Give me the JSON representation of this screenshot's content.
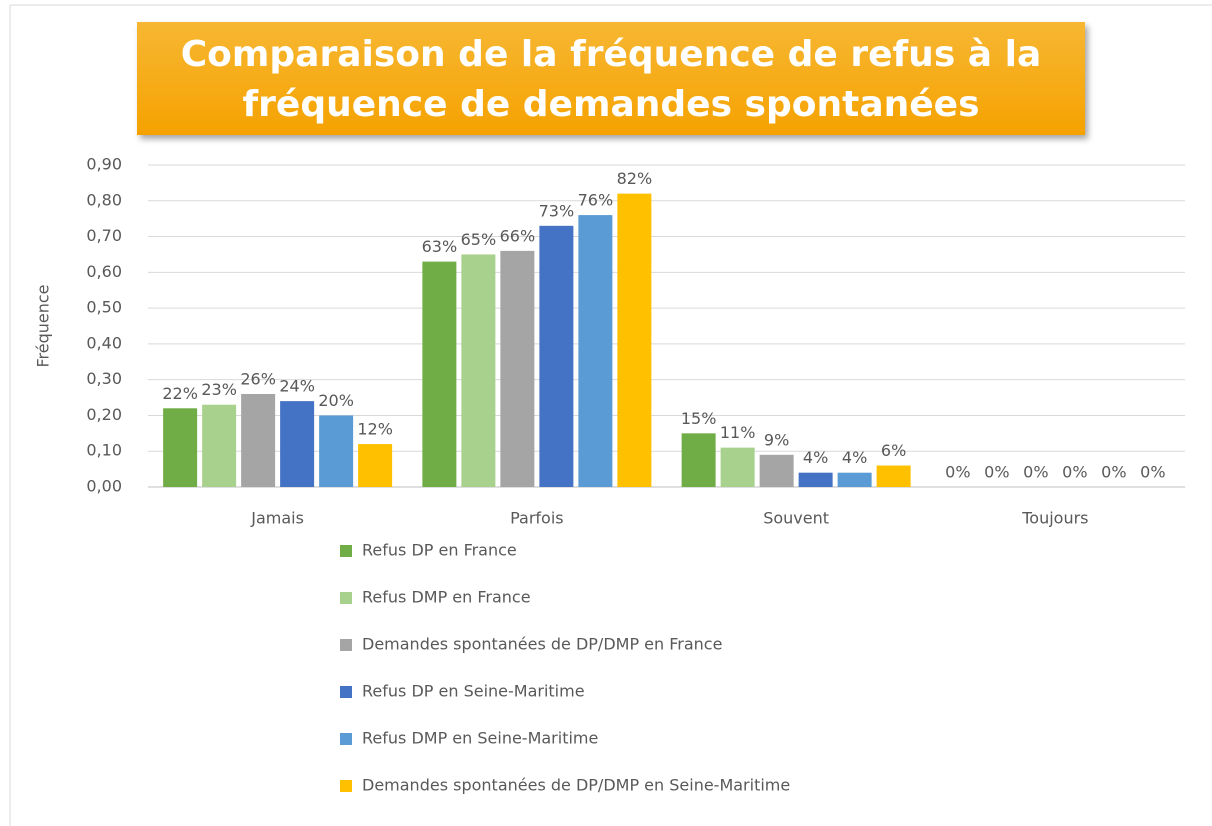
{
  "chart_data": {
    "type": "bar",
    "title": "Comparaison de la fréquence de refus à la fréquence de demandes spontanées",
    "y_label": "Fréquence",
    "categories": [
      "Jamais",
      "Parfois",
      "Souvent",
      "Toujours"
    ],
    "series": [
      {
        "name": "Refus DP en France",
        "color": "#70ad47",
        "values": [
          0.22,
          0.63,
          0.15,
          0
        ],
        "value_labels": [
          "22%",
          "63%",
          "15%",
          "0%"
        ]
      },
      {
        "name": "Refus DMP en France",
        "color": "#a9d18e",
        "values": [
          0.23,
          0.65,
          0.11,
          0
        ],
        "value_labels": [
          "23%",
          "65%",
          "11%",
          "0%"
        ]
      },
      {
        "name": "Demandes spontanées de DP/DMP en France",
        "color": "#a5a5a5",
        "values": [
          0.26,
          0.66,
          0.09,
          0
        ],
        "value_labels": [
          "26%",
          "66%",
          "9%",
          "0%"
        ]
      },
      {
        "name": "Refus DP en Seine-Maritime",
        "color": "#4472c4",
        "values": [
          0.24,
          0.73,
          0.04,
          0
        ],
        "value_labels": [
          "24%",
          "73%",
          "4%",
          "0%"
        ]
      },
      {
        "name": "Refus DMP en Seine-Maritime",
        "color": "#5b9bd5",
        "values": [
          0.2,
          0.76,
          0.04,
          0
        ],
        "value_labels": [
          "20%",
          "76%",
          "4%",
          "0%"
        ]
      },
      {
        "name": "Demandes spontanées de DP/DMP en Seine-Maritime",
        "color": "#ffc000",
        "values": [
          0.12,
          0.82,
          0.06,
          0
        ],
        "value_labels": [
          "12%",
          "82%",
          "6%",
          "0%"
        ]
      }
    ],
    "ylim": [
      0,
      0.9
    ],
    "yticks": [
      {
        "value": 0,
        "label": "0,00"
      },
      {
        "value": 0.1,
        "label": "0,10"
      },
      {
        "value": 0.2,
        "label": "0,20"
      },
      {
        "value": 0.3,
        "label": "0,30"
      },
      {
        "value": 0.4,
        "label": "0,40"
      },
      {
        "value": 0.5,
        "label": "0,50"
      },
      {
        "value": 0.6,
        "label": "0,60"
      },
      {
        "value": 0.7,
        "label": "0,70"
      },
      {
        "value": 0.8,
        "label": "0,80"
      },
      {
        "value": 0.9,
        "label": "0,90"
      }
    ],
    "grid": true,
    "legend": "bottom"
  }
}
